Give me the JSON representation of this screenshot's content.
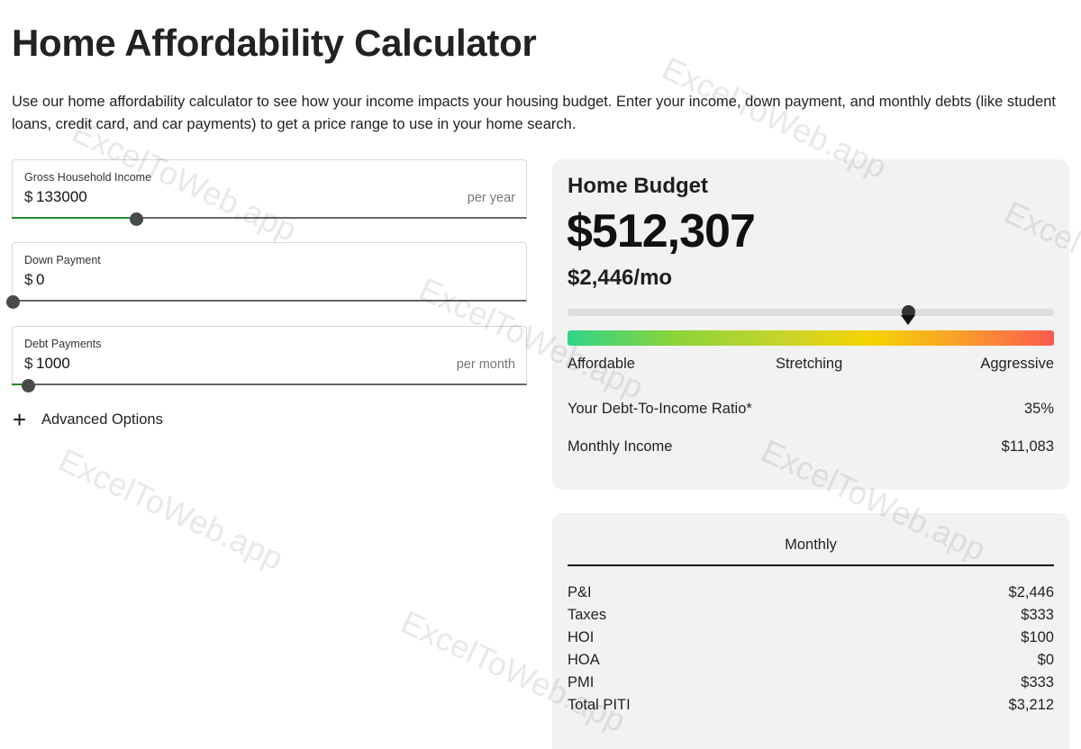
{
  "page": {
    "title": "Home Affordability Calculator",
    "intro": "Use our home affordability calculator to see how your income impacts your housing budget. Enter your income, down payment, and monthly debts (like student loans, credit card, and car payments) to get a price range to use in your home search."
  },
  "inputs": {
    "income": {
      "label": "Gross Household Income",
      "currency": "$",
      "value": "133000",
      "suffix": "per year",
      "slider_fraction": 0.24
    },
    "down_payment": {
      "label": "Down Payment",
      "currency": "$",
      "value": "0",
      "slider_fraction": 0.0
    },
    "debt": {
      "label": "Debt Payments",
      "currency": "$",
      "value": "1000",
      "suffix": "per month",
      "slider_fraction": 0.03
    }
  },
  "advanced": {
    "icon": "plus-icon",
    "label": "Advanced Options"
  },
  "budget": {
    "title": "Home Budget",
    "amount": "$512,307",
    "monthly": "$2,446/mo",
    "meter_fraction": 0.7,
    "scale": {
      "low": "Affordable",
      "mid": "Stretching",
      "high": "Aggressive"
    },
    "dti_label": "Your Debt-To-Income Ratio*",
    "dti_value": "35%",
    "income_label": "Monthly Income",
    "income_value": "$11,083"
  },
  "monthly": {
    "header": "Monthly",
    "rows": [
      {
        "label": "P&I",
        "value": "$2,446"
      },
      {
        "label": "Taxes",
        "value": "$333"
      },
      {
        "label": "HOI",
        "value": "$100"
      },
      {
        "label": "HOA",
        "value": "$0"
      },
      {
        "label": "PMI",
        "value": "$333"
      },
      {
        "label": "Total PITI",
        "value": "$3,212"
      }
    ]
  },
  "watermark": "ExcelToWeb.app",
  "colors": {
    "slider_fill": "#1e8b2c",
    "card_bg": "#f2f2f2",
    "gradient": [
      "#2ed588",
      "#8bd43a",
      "#f4d400",
      "#f9a128",
      "#fb5a50"
    ]
  }
}
